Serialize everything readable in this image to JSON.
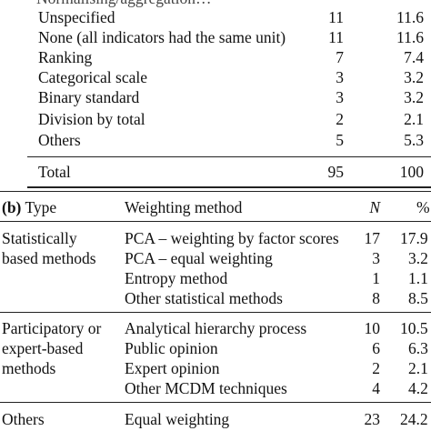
{
  "section_a": {
    "cut_header": "Normalising/aggregation…",
    "rows": [
      {
        "label": "Unspecified",
        "n": "11",
        "pct": "11.6"
      },
      {
        "label": "None (all indicators had the same unit)",
        "n": "11",
        "pct": "11.6"
      },
      {
        "label": "Ranking",
        "n": "7",
        "pct": "7.4"
      },
      {
        "label": "Categorical scale",
        "n": "3",
        "pct": "3.2"
      },
      {
        "label": "Binary standard",
        "n": "3",
        "pct": "3.2"
      },
      {
        "label": "Division by total",
        "n": "2",
        "pct": "2.1"
      },
      {
        "label": "Others",
        "n": "5",
        "pct": "5.3"
      }
    ],
    "total": {
      "label": "Total",
      "n": "95",
      "pct": "100"
    }
  },
  "section_b": {
    "header": {
      "tag": "(b)",
      "type": "Type",
      "method": "Weighting method",
      "n": "N",
      "pct": "%"
    },
    "groups": [
      {
        "type_lines": [
          "Statistically",
          "based methods"
        ],
        "rows": [
          {
            "method": "PCA – weighting by factor scores",
            "n": "17",
            "pct": "17.9"
          },
          {
            "method": "PCA – equal weighting",
            "n": "3",
            "pct": "3.2"
          },
          {
            "method": "Entropy method",
            "n": "1",
            "pct": "1.1"
          },
          {
            "method": "Other statistical methods",
            "n": "8",
            "pct": "8.5"
          }
        ]
      },
      {
        "type_lines": [
          "Participatory or",
          "expert-based",
          "methods"
        ],
        "rows": [
          {
            "method": "Analytical hierarchy process",
            "n": "10",
            "pct": "10.5"
          },
          {
            "method": "Public opinion",
            "n": "6",
            "pct": "6.3"
          },
          {
            "method": "Expert opinion",
            "n": "2",
            "pct": "2.1"
          },
          {
            "method": "Other MCDM techniques",
            "n": "4",
            "pct": "4.2"
          }
        ]
      },
      {
        "type_lines": [
          "Others"
        ],
        "rows": [
          {
            "method": "Equal weighting",
            "n": "23",
            "pct": "24.2"
          }
        ]
      }
    ]
  }
}
